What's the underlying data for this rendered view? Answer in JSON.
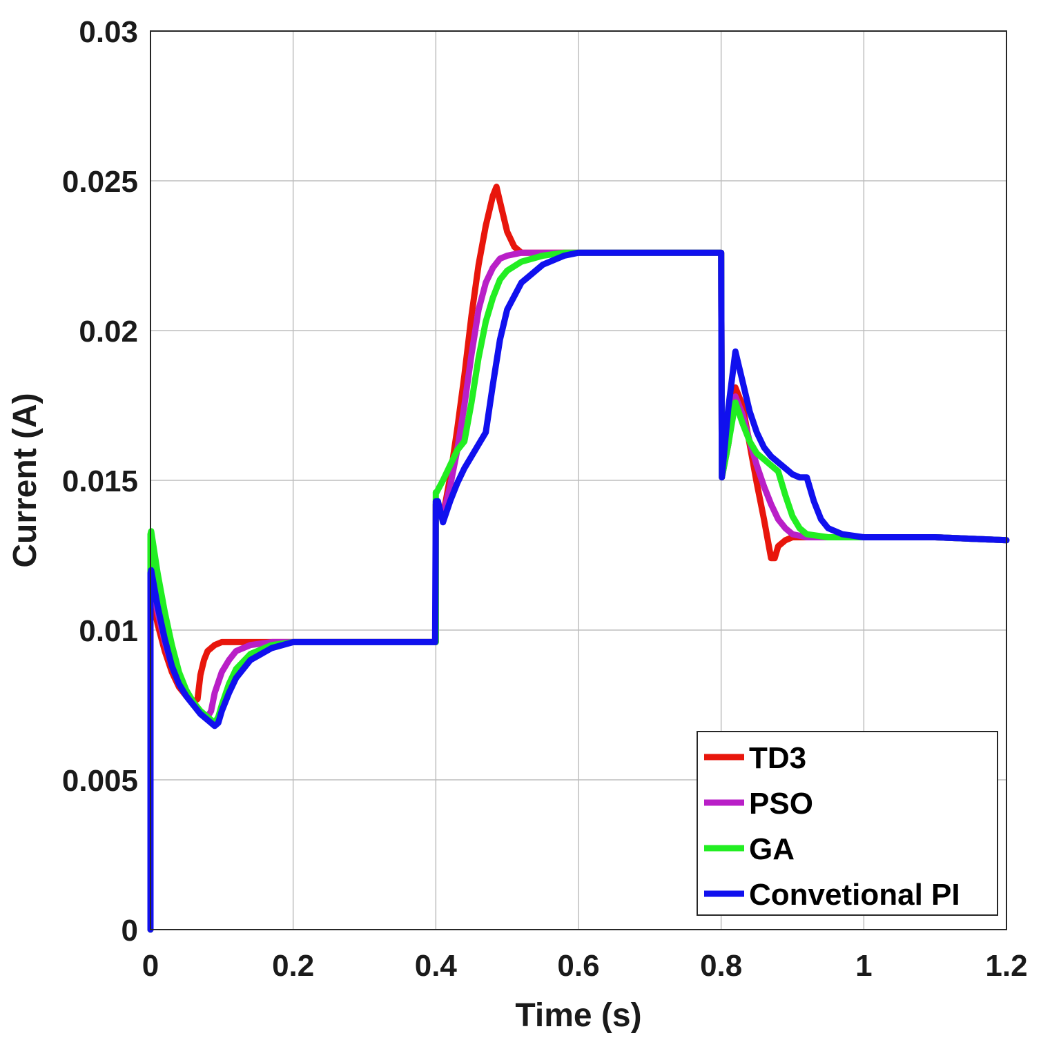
{
  "chart_data": {
    "type": "line",
    "title": "",
    "xlabel": "Time (s)",
    "ylabel": "Current (A)",
    "xlim": [
      0,
      1.2
    ],
    "ylim": [
      0,
      0.03
    ],
    "xticks": [
      0,
      0.2,
      0.4,
      0.6,
      0.8,
      1,
      1.2
    ],
    "xtick_labels": [
      "0",
      "0.2",
      "0.4",
      "0.6",
      "0.8",
      "1",
      "1.2"
    ],
    "yticks": [
      0,
      0.005,
      0.01,
      0.015,
      0.02,
      0.025,
      0.03
    ],
    "ytick_labels": [
      "0",
      "0.005",
      "0.01",
      "0.015",
      "0.02",
      "0.025",
      "0.03"
    ],
    "grid": true,
    "legend_position": "bottom-right",
    "series": [
      {
        "name": "TD3",
        "color": "#e8160c",
        "x": [
          0.0,
          0.0,
          0.001,
          0.01,
          0.02,
          0.03,
          0.04,
          0.05,
          0.06,
          0.066,
          0.07,
          0.075,
          0.08,
          0.09,
          0.1,
          0.12,
          0.15,
          0.2,
          0.3,
          0.4,
          0.4,
          0.401,
          0.41,
          0.42,
          0.43,
          0.44,
          0.45,
          0.46,
          0.47,
          0.48,
          0.485,
          0.49,
          0.5,
          0.51,
          0.52,
          0.53,
          0.55,
          0.6,
          0.7,
          0.799,
          0.8,
          0.801,
          0.81,
          0.82,
          0.83,
          0.84,
          0.85,
          0.86,
          0.87,
          0.875,
          0.88,
          0.89,
          0.9,
          0.92,
          0.95,
          1.0,
          1.1,
          1.2
        ],
        "y": [
          0.0,
          0.011,
          0.0113,
          0.0102,
          0.0093,
          0.0086,
          0.0081,
          0.0078,
          0.0076,
          0.0077,
          0.0085,
          0.009,
          0.0093,
          0.0095,
          0.0096,
          0.0096,
          0.0096,
          0.0096,
          0.0096,
          0.0096,
          0.0142,
          0.0142,
          0.0138,
          0.0151,
          0.0167,
          0.0185,
          0.0205,
          0.0222,
          0.0235,
          0.0245,
          0.0248,
          0.0243,
          0.0233,
          0.0228,
          0.0226,
          0.0226,
          0.0226,
          0.0226,
          0.0226,
          0.0226,
          0.0226,
          0.0151,
          0.0162,
          0.0181,
          0.0175,
          0.0162,
          0.0149,
          0.0137,
          0.0124,
          0.0124,
          0.0128,
          0.013,
          0.0131,
          0.0131,
          0.0131,
          0.0131,
          0.0131,
          0.013
        ]
      },
      {
        "name": "PSO",
        "color": "#b91fc7",
        "x": [
          0.0,
          0.0,
          0.001,
          0.01,
          0.02,
          0.03,
          0.04,
          0.05,
          0.06,
          0.07,
          0.08,
          0.085,
          0.09,
          0.1,
          0.11,
          0.12,
          0.14,
          0.17,
          0.2,
          0.3,
          0.4,
          0.4,
          0.401,
          0.41,
          0.42,
          0.43,
          0.44,
          0.45,
          0.46,
          0.47,
          0.48,
          0.49,
          0.5,
          0.52,
          0.55,
          0.6,
          0.7,
          0.799,
          0.8,
          0.801,
          0.81,
          0.82,
          0.83,
          0.84,
          0.85,
          0.86,
          0.87,
          0.88,
          0.89,
          0.9,
          0.92,
          0.95,
          1.0,
          1.1,
          1.2
        ],
        "y": [
          0.0,
          0.0115,
          0.0118,
          0.0106,
          0.0096,
          0.0088,
          0.0082,
          0.0078,
          0.0075,
          0.0073,
          0.0071,
          0.0073,
          0.0079,
          0.0086,
          0.009,
          0.0093,
          0.0095,
          0.0096,
          0.0096,
          0.0096,
          0.0096,
          0.0142,
          0.0142,
          0.0138,
          0.0148,
          0.016,
          0.0175,
          0.0192,
          0.0207,
          0.0216,
          0.0221,
          0.0224,
          0.0225,
          0.0226,
          0.0226,
          0.0226,
          0.0226,
          0.0226,
          0.0226,
          0.0151,
          0.0162,
          0.0178,
          0.0172,
          0.0163,
          0.0155,
          0.0148,
          0.0142,
          0.0137,
          0.0134,
          0.0132,
          0.0131,
          0.0131,
          0.0131,
          0.0131,
          0.013
        ]
      },
      {
        "name": "GA",
        "color": "#22ee22",
        "x": [
          0.0,
          0.0,
          0.001,
          0.01,
          0.02,
          0.03,
          0.04,
          0.05,
          0.06,
          0.07,
          0.08,
          0.09,
          0.095,
          0.1,
          0.11,
          0.12,
          0.14,
          0.17,
          0.2,
          0.3,
          0.4,
          0.4,
          0.401,
          0.41,
          0.42,
          0.43,
          0.44,
          0.45,
          0.46,
          0.47,
          0.48,
          0.49,
          0.5,
          0.52,
          0.55,
          0.58,
          0.6,
          0.7,
          0.799,
          0.8,
          0.801,
          0.81,
          0.82,
          0.83,
          0.84,
          0.85,
          0.86,
          0.87,
          0.88,
          0.89,
          0.9,
          0.91,
          0.92,
          0.95,
          1.0,
          1.1,
          1.2
        ],
        "y": [
          0.0,
          0.0132,
          0.0133,
          0.0119,
          0.0106,
          0.0095,
          0.0086,
          0.008,
          0.0076,
          0.0073,
          0.0071,
          0.0069,
          0.0071,
          0.0075,
          0.0082,
          0.0087,
          0.0092,
          0.0095,
          0.0096,
          0.0096,
          0.0096,
          0.0146,
          0.0146,
          0.015,
          0.0155,
          0.016,
          0.0163,
          0.0176,
          0.0191,
          0.0203,
          0.0211,
          0.0217,
          0.022,
          0.0223,
          0.0225,
          0.0226,
          0.0226,
          0.0226,
          0.0226,
          0.0226,
          0.0151,
          0.0162,
          0.0176,
          0.0169,
          0.0163,
          0.0159,
          0.0157,
          0.0155,
          0.0153,
          0.0145,
          0.0138,
          0.0134,
          0.0132,
          0.0131,
          0.0131,
          0.0131,
          0.013
        ]
      },
      {
        "name": "Convetional PI",
        "color": "#1010ee",
        "x": [
          0.0,
          0.0,
          0.001,
          0.01,
          0.02,
          0.03,
          0.04,
          0.05,
          0.06,
          0.07,
          0.08,
          0.09,
          0.095,
          0.1,
          0.11,
          0.12,
          0.14,
          0.17,
          0.2,
          0.3,
          0.399,
          0.4,
          0.403,
          0.41,
          0.42,
          0.43,
          0.44,
          0.45,
          0.46,
          0.47,
          0.48,
          0.49,
          0.5,
          0.52,
          0.55,
          0.58,
          0.6,
          0.65,
          0.7,
          0.799,
          0.8,
          0.801,
          0.81,
          0.82,
          0.83,
          0.84,
          0.85,
          0.86,
          0.87,
          0.88,
          0.89,
          0.9,
          0.91,
          0.92,
          0.93,
          0.94,
          0.95,
          0.97,
          1.0,
          1.1,
          1.2
        ],
        "y": [
          0.0,
          0.0119,
          0.012,
          0.0108,
          0.0097,
          0.0088,
          0.0082,
          0.0078,
          0.0075,
          0.0072,
          0.007,
          0.0068,
          0.0069,
          0.0073,
          0.0079,
          0.0084,
          0.009,
          0.0094,
          0.0096,
          0.0096,
          0.0096,
          0.0143,
          0.0143,
          0.0136,
          0.0143,
          0.0149,
          0.0154,
          0.0158,
          0.0162,
          0.0166,
          0.0182,
          0.0197,
          0.0207,
          0.0216,
          0.0222,
          0.0225,
          0.0226,
          0.0226,
          0.0226,
          0.0226,
          0.0226,
          0.0151,
          0.0174,
          0.0193,
          0.0183,
          0.0173,
          0.0166,
          0.0161,
          0.0158,
          0.0156,
          0.0154,
          0.0152,
          0.0151,
          0.0151,
          0.0143,
          0.0137,
          0.0134,
          0.0132,
          0.0131,
          0.0131,
          0.013
        ]
      }
    ]
  }
}
